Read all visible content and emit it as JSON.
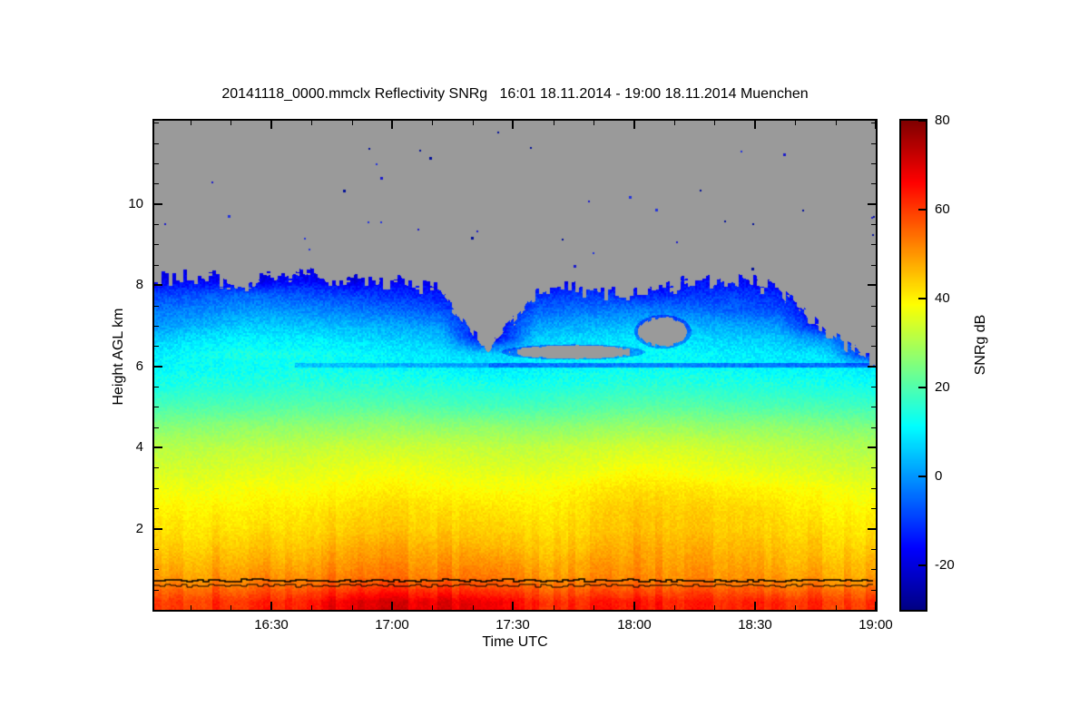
{
  "chart_data": {
    "type": "heatmap",
    "title": "20141118_0000.mmclx Reflectivity SNRg   16:01 18.11.2014 - 19:00 18.11.2014 Muenchen",
    "xlabel": "Time UTC",
    "ylabel": "Height AGL km",
    "x_range_hours": [
      16.0167,
      19.0
    ],
    "y_range_km": [
      0,
      12.05
    ],
    "x_ticks": [
      {
        "hour": 16.5,
        "label": "16:30"
      },
      {
        "hour": 17.0,
        "label": "17:00"
      },
      {
        "hour": 17.5,
        "label": "17:30"
      },
      {
        "hour": 18.0,
        "label": "18:00"
      },
      {
        "hour": 18.5,
        "label": "18:30"
      },
      {
        "hour": 19.0,
        "label": "19:00"
      }
    ],
    "x_minor_step_hours": 0.166667,
    "y_ticks": [
      {
        "km": 2,
        "label": "2"
      },
      {
        "km": 4,
        "label": "4"
      },
      {
        "km": 6,
        "label": "6"
      },
      {
        "km": 8,
        "label": "8"
      },
      {
        "km": 10,
        "label": "10"
      }
    ],
    "y_minor_step_km": 0.5,
    "colorbar": {
      "label": "SNRg dB",
      "min": -30,
      "max": 80,
      "ticks": [
        {
          "v": 80,
          "label": "80"
        },
        {
          "v": 60,
          "label": "60"
        },
        {
          "v": 40,
          "label": "40"
        },
        {
          "v": 20,
          "label": "20"
        },
        {
          "v": 0,
          "label": "0"
        },
        {
          "v": -20,
          "label": "-20"
        }
      ]
    },
    "colormap": {
      "name": "jet",
      "stops": [
        {
          "pos": 0.0,
          "rgb": [
            0,
            0,
            131
          ]
        },
        {
          "pos": 0.125,
          "rgb": [
            0,
            0,
            255
          ]
        },
        {
          "pos": 0.375,
          "rgb": [
            0,
            255,
            255
          ]
        },
        {
          "pos": 0.625,
          "rgb": [
            255,
            255,
            0
          ]
        },
        {
          "pos": 0.875,
          "rgb": [
            255,
            0,
            0
          ]
        },
        {
          "pos": 1.0,
          "rgb": [
            128,
            0,
            0
          ]
        }
      ]
    },
    "no_data_color": "#9a9a9a",
    "grid": {
      "x_hours": [
        16.02,
        16.2,
        16.4,
        16.6,
        16.8,
        17.0,
        17.2,
        17.4,
        17.6,
        17.8,
        18.0,
        18.2,
        18.4,
        18.6,
        18.8,
        19.0
      ],
      "heights_km": [
        0.2,
        0.5,
        0.8,
        1.2,
        1.6,
        2.0,
        2.5,
        3.0,
        3.5,
        4.0,
        4.5,
        5.0,
        5.5,
        6.0,
        6.3,
        6.7,
        7.0,
        7.4,
        7.8,
        8.1,
        8.5,
        12.0
      ],
      "snr_db": [
        [
          60,
          61,
          62,
          64,
          68,
          70,
          69,
          66,
          62,
          62,
          65,
          63,
          62,
          62,
          61,
          60
        ],
        [
          55,
          56,
          56,
          58,
          60,
          62,
          61,
          58,
          56,
          56,
          58,
          57,
          56,
          55,
          55,
          54
        ],
        [
          50,
          50,
          51,
          52,
          53,
          54,
          53,
          52,
          50,
          50,
          52,
          51,
          50,
          50,
          49,
          48
        ],
        [
          47,
          47,
          48,
          48,
          50,
          51,
          50,
          49,
          47,
          48,
          50,
          49,
          48,
          47,
          46,
          46
        ],
        [
          44,
          44,
          45,
          45,
          47,
          48,
          47,
          45,
          44,
          45,
          48,
          47,
          46,
          45,
          44,
          43
        ],
        [
          42,
          42,
          42,
          43,
          44,
          45,
          44,
          43,
          42,
          43,
          46,
          45,
          44,
          43,
          42,
          41
        ],
        [
          40,
          40,
          40,
          41,
          42,
          43,
          42,
          41,
          40,
          42,
          45,
          44,
          43,
          42,
          40,
          39
        ],
        [
          37,
          37,
          38,
          38,
          39,
          40,
          39,
          38,
          38,
          40,
          42,
          41,
          40,
          39,
          38,
          36
        ],
        [
          34,
          34,
          35,
          35,
          36,
          37,
          36,
          35,
          35,
          36,
          38,
          37,
          36,
          35,
          34,
          33
        ],
        [
          31,
          31,
          32,
          32,
          33,
          33,
          33,
          32,
          32,
          33,
          34,
          34,
          33,
          32,
          31,
          30
        ],
        [
          26,
          26,
          27,
          27,
          27,
          28,
          27,
          27,
          26,
          27,
          28,
          28,
          27,
          27,
          26,
          25
        ],
        [
          19,
          20,
          20,
          21,
          21,
          21,
          20,
          19,
          19,
          20,
          21,
          21,
          20,
          20,
          19,
          18
        ],
        [
          14,
          15,
          15,
          16,
          16,
          16,
          15,
          14,
          14,
          15,
          16,
          16,
          15,
          15,
          14,
          13
        ],
        [
          11,
          12,
          12,
          13,
          12,
          11,
          10,
          9,
          10,
          11,
          12,
          12,
          11,
          10,
          10,
          9
        ],
        [
          10,
          12,
          14,
          13,
          12,
          10,
          9,
          6,
          9,
          10,
          11,
          11,
          10,
          9,
          8,
          null
        ],
        [
          5,
          8,
          10,
          9,
          8,
          6,
          5,
          null,
          6,
          7,
          8,
          8,
          6,
          5,
          -2,
          null
        ],
        [
          0,
          3,
          6,
          5,
          4,
          2,
          0,
          null,
          1,
          3,
          4,
          4,
          2,
          0,
          null,
          null
        ],
        [
          -4,
          -2,
          0,
          -1,
          -3,
          -5,
          -8,
          null,
          -6,
          -4,
          -3,
          -4,
          -6,
          -8,
          null,
          null
        ],
        [
          -10,
          -8,
          -6,
          -8,
          -10,
          -12,
          -14,
          null,
          -12,
          -10,
          -14,
          -12,
          -10,
          -13,
          null,
          null
        ],
        [
          -18,
          -16,
          null,
          -15,
          null,
          -17,
          null,
          null,
          null,
          null,
          null,
          -16,
          -15,
          null,
          null,
          null
        ],
        [
          null,
          null,
          null,
          null,
          null,
          null,
          null,
          null,
          null,
          null,
          null,
          null,
          null,
          null,
          null,
          null
        ],
        [
          null,
          null,
          null,
          null,
          null,
          null,
          null,
          null,
          null,
          null,
          null,
          null,
          null,
          null,
          null,
          null
        ]
      ]
    },
    "cloud_top_km": [
      8.1,
      8.2,
      8.0,
      8.3,
      8.0,
      8.1,
      7.9,
      6.4,
      7.8,
      7.9,
      7.8,
      8.0,
      8.2,
      7.9,
      6.8,
      6.1
    ],
    "dark_layer": {
      "h": 6.02,
      "half_width": 0.06,
      "t_start": 16.6,
      "reduction_db": 14
    },
    "clear_gaps": [
      {
        "t": 17.75,
        "h": 6.35,
        "rt": 0.25,
        "rh": 0.16
      },
      {
        "t": 18.12,
        "h": 6.85,
        "rt": 0.1,
        "rh": 0.35
      }
    ],
    "ground_lines_km": [
      0.72,
      0.6
    ],
    "speck_count": 35
  }
}
